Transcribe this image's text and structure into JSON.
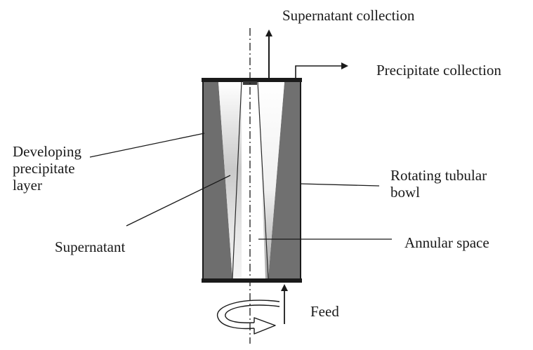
{
  "labels": {
    "supernatant_collection": "Supernatant collection",
    "precipitate_collection": "Precipitate collection",
    "developing_layer": [
      "Developing",
      "precipitate",
      "layer"
    ],
    "rotating_bowl": [
      "Rotating tubular",
      "bowl"
    ],
    "supernatant": "Supernatant",
    "annular_space": "Annular space",
    "feed": "Feed"
  },
  "colors": {
    "ink": "#1a1a1a",
    "precipitate_gray": "#6e6e6e",
    "supernatant_gradient_light": "#ffffff",
    "supernatant_gradient_dark": "#b8b8b8"
  }
}
